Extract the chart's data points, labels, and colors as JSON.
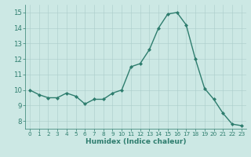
{
  "x": [
    0,
    1,
    2,
    3,
    4,
    5,
    6,
    7,
    8,
    9,
    10,
    11,
    12,
    13,
    14,
    15,
    16,
    17,
    18,
    19,
    20,
    21,
    22,
    23
  ],
  "y": [
    10.0,
    9.7,
    9.5,
    9.5,
    9.8,
    9.6,
    9.1,
    9.4,
    9.4,
    9.8,
    10.0,
    11.5,
    11.7,
    12.6,
    14.0,
    14.9,
    15.0,
    14.2,
    12.0,
    10.1,
    9.4,
    8.5,
    7.8,
    7.7
  ],
  "line_color": "#2e7d6e",
  "marker": "D",
  "marker_size": 2.0,
  "bg_color": "#cce8e4",
  "grid_color": "#aaccca",
  "xlabel": "Humidex (Indice chaleur)",
  "xlim": [
    -0.5,
    23.5
  ],
  "ylim": [
    7.5,
    15.5
  ],
  "yticks": [
    8,
    9,
    10,
    11,
    12,
    13,
    14,
    15
  ],
  "xticks": [
    0,
    1,
    2,
    3,
    4,
    5,
    6,
    7,
    8,
    9,
    10,
    11,
    12,
    13,
    14,
    15,
    16,
    17,
    18,
    19,
    20,
    21,
    22,
    23
  ],
  "xlabel_fontsize": 6.5,
  "xtick_fontsize": 5.2,
  "ytick_fontsize": 6.2,
  "tick_color": "#2e7d6e",
  "axis_color": "#2e7d6e",
  "line_width": 1.0
}
